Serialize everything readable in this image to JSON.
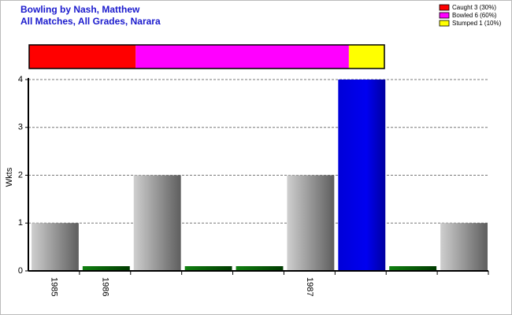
{
  "chart_data": [
    {
      "type": "bar",
      "title": "Bowling by Nash, Matthew",
      "subtitle": "All Matches, All Grades, Narara",
      "y_label": "Wkts",
      "categories": [
        "1985",
        "1986",
        null,
        null,
        null,
        "1987",
        null,
        null,
        null
      ],
      "values": [
        1,
        0,
        2,
        0,
        0,
        2,
        4,
        0,
        1
      ],
      "colors": [
        "gray",
        "green",
        "gray",
        "green",
        "green",
        "gray",
        "blue",
        "green",
        "gray"
      ],
      "ylim": [
        0,
        4
      ],
      "yticks": [
        0,
        1,
        2,
        3,
        4
      ],
      "grid": true
    },
    {
      "type": "stacked-bar",
      "xlim": [
        0,
        100
      ],
      "legend": "top-right",
      "series": [
        {
          "name": "Caught 3 (30%)",
          "color": "#ff0000",
          "values": [
            30
          ]
        },
        {
          "name": "Bowled 6 (60%)",
          "color": "#ff00ff",
          "values": [
            60
          ]
        },
        {
          "name": "Stumped 1 (10%)",
          "color": "#ffff00",
          "values": [
            10
          ]
        }
      ]
    }
  ]
}
